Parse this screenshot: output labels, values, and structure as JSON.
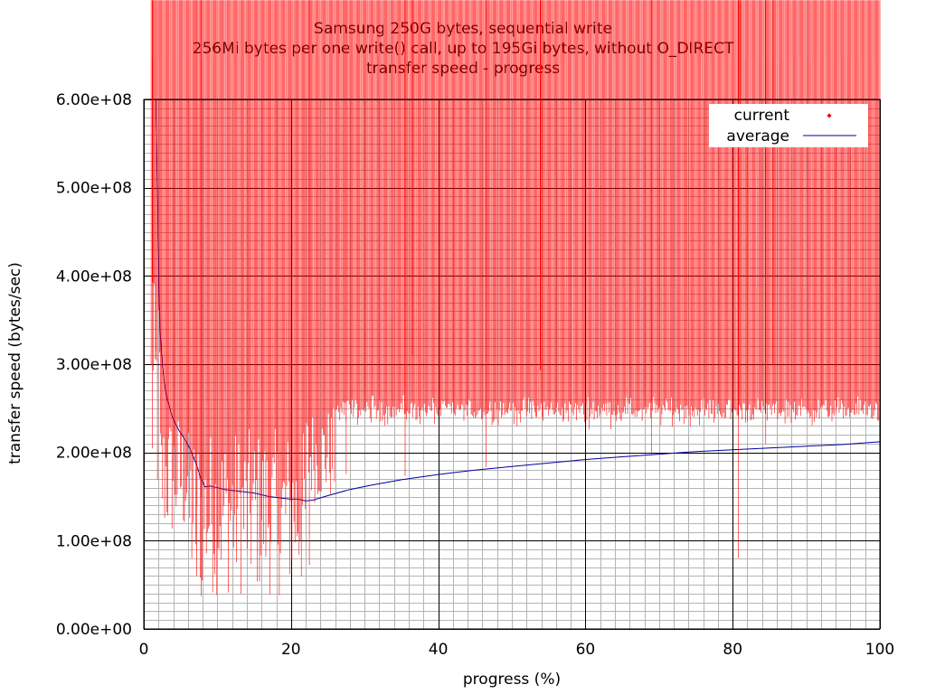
{
  "chart_data": {
    "type": "scatter",
    "title_lines": [
      "Samsung 250G bytes, sequential write",
      "256Mi bytes per one write() call, up to 195Gi bytes, without O_DIRECT",
      "transfer speed - progress"
    ],
    "xlabel": "progress (%)",
    "ylabel": "transfer speed (bytes/sec)",
    "xlim": [
      0,
      100
    ],
    "ylim": [
      0,
      600000000
    ],
    "x_ticks": [
      0,
      20,
      40,
      60,
      80,
      100
    ],
    "x_tick_labels": [
      "0",
      "20",
      "40",
      "60",
      "80",
      "100"
    ],
    "y_ticks": [
      0,
      100000000,
      200000000,
      300000000,
      400000000,
      500000000,
      600000000
    ],
    "y_tick_labels": [
      "0.00e+00",
      "1.00e+08",
      "2.00e+08",
      "3.00e+08",
      "4.00e+08",
      "5.00e+08",
      "6.00e+08"
    ],
    "grid": true,
    "legend_position": "top-right",
    "series": [
      {
        "name": "current",
        "style": "points",
        "color": "#ff0000",
        "generated_count": 700,
        "phases": [
          {
            "x_from": 1.0,
            "x_to": 2.2,
            "min": 120000000,
            "max": 390000000
          },
          {
            "x_from": 2.2,
            "x_to": 6.0,
            "min": 95000000,
            "max": 245000000
          },
          {
            "x_from": 6.0,
            "x_to": 22.0,
            "min": 35000000,
            "max": 225000000
          },
          {
            "x_from": 22.0,
            "x_to": 26.0,
            "min": 140000000,
            "max": 250000000
          },
          {
            "x_from": 26.0,
            "x_to": 100.0,
            "center": 245000000,
            "spread": 25000000
          }
        ],
        "outliers": [
          {
            "x": 1.2,
            "y": 390000000
          },
          {
            "x": 1.7,
            "y": 313000000
          },
          {
            "x": 7.8,
            "y": 35000000
          },
          {
            "x": 7.2,
            "y": 58000000
          },
          {
            "x": 36.5,
            "y": 308000000
          },
          {
            "x": 80.8,
            "y": 78000000
          },
          {
            "x": 81.0,
            "y": 549000000
          },
          {
            "x": 53.9,
            "y": 291000000
          },
          {
            "x": 85.5,
            "y": 297000000
          },
          {
            "x": 27.5,
            "y": 173000000
          },
          {
            "x": 35.5,
            "y": 171000000
          },
          {
            "x": 46.5,
            "y": 181000000
          },
          {
            "x": 69.0,
            "y": 194000000
          },
          {
            "x": 84.5,
            "y": 207000000
          },
          {
            "x": 22.5,
            "y": 70000000
          }
        ]
      },
      {
        "name": "average",
        "style": "line",
        "color": "#0000a0",
        "x": [
          1.6,
          1.75,
          1.9,
          2.05,
          2.2,
          2.5,
          2.8,
          3.2,
          3.7,
          4.3,
          5.0,
          5.8,
          6.5,
          7.2,
          7.8,
          8.3,
          9.0,
          10.0,
          11.0,
          12.0,
          13.0,
          14.0,
          15.0,
          16.0,
          17.0,
          18.0,
          19.0,
          20.0,
          21.0,
          22.0,
          23.0,
          25.0,
          28.0,
          31.0,
          35.0,
          40.0,
          45.0,
          50.0,
          55.0,
          60.0,
          65.0,
          70.0,
          75.0,
          80.0,
          85.0,
          90.0,
          95.0,
          100.0
        ],
        "y": [
          600000000,
          550000000,
          480000000,
          400000000,
          340000000,
          300000000,
          280000000,
          260000000,
          245000000,
          232000000,
          222000000,
          212000000,
          200000000,
          185000000,
          170000000,
          161000000,
          162000000,
          160000000,
          158000000,
          157000000,
          156000000,
          155000000,
          154000000,
          152000000,
          150000000,
          149000000,
          148000000,
          147000000,
          147000000,
          145000000,
          146000000,
          151000000,
          158000000,
          163000000,
          169000000,
          175000000,
          180000000,
          184000000,
          188000000,
          192000000,
          195000000,
          198000000,
          201000000,
          203000000,
          205000000,
          207000000,
          209000000,
          212000000
        ]
      }
    ]
  }
}
